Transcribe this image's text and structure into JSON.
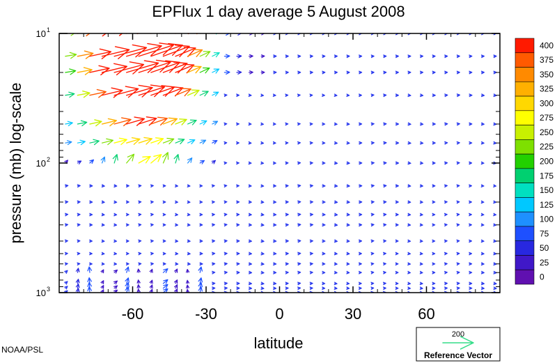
{
  "chart_data": {
    "type": "vector-field",
    "title": "EPFlux  1 day average  5 August    2008",
    "xlabel": "latitude",
    "ylabel": "pressure (mb)  log-scale",
    "x_range": [
      -90,
      90
    ],
    "y_range_mb": [
      1000,
      10
    ],
    "y_scale": "log",
    "x_ticks": [
      "-60",
      "-30",
      "0",
      "30",
      "60"
    ],
    "x_tick_values": [
      -60,
      -30,
      0,
      30,
      60
    ],
    "y_ticks": [
      {
        "base": "10",
        "exp": "1",
        "value": 10
      },
      {
        "base": "10",
        "exp": "2",
        "value": 100
      },
      {
        "base": "10",
        "exp": "3",
        "value": 1000
      }
    ],
    "colorbar": {
      "labels": [
        "400",
        "375",
        "350",
        "325",
        "300",
        "275",
        "250",
        "225",
        "200",
        "175",
        "150",
        "125",
        "100",
        "75",
        "50",
        "25",
        "0"
      ],
      "colors": [
        "#ff1a00",
        "#ff5a00",
        "#ff8a00",
        "#ffb000",
        "#ffd800",
        "#ffff00",
        "#c8f000",
        "#7ee000",
        "#22d000",
        "#00d070",
        "#00e0c0",
        "#00c8ff",
        "#1e90ff",
        "#1e50ff",
        "#2828e0",
        "#4018c8",
        "#6010b0"
      ]
    },
    "reference_vector": {
      "value": "200",
      "label": "Reference Vector",
      "color": "#33dd88"
    },
    "lat_range_shown": [
      -87.5,
      87.5
    ],
    "lat_step": 5,
    "pressure_levels_mb": [
      1000,
      925,
      850,
      700,
      600,
      500,
      400,
      300,
      250,
      200,
      150,
      100,
      70,
      50,
      30,
      20,
      15,
      10
    ],
    "background_vector_color": "#2a3aee",
    "notes": "Strong upward/equatorward EP flux vectors in southern high latitudes (-90 to -30) above 100 mb, magnitudes exceeding 400 (red); weak vectors elsewhere."
  },
  "footer": {
    "credit": "NOAA/PSL"
  }
}
